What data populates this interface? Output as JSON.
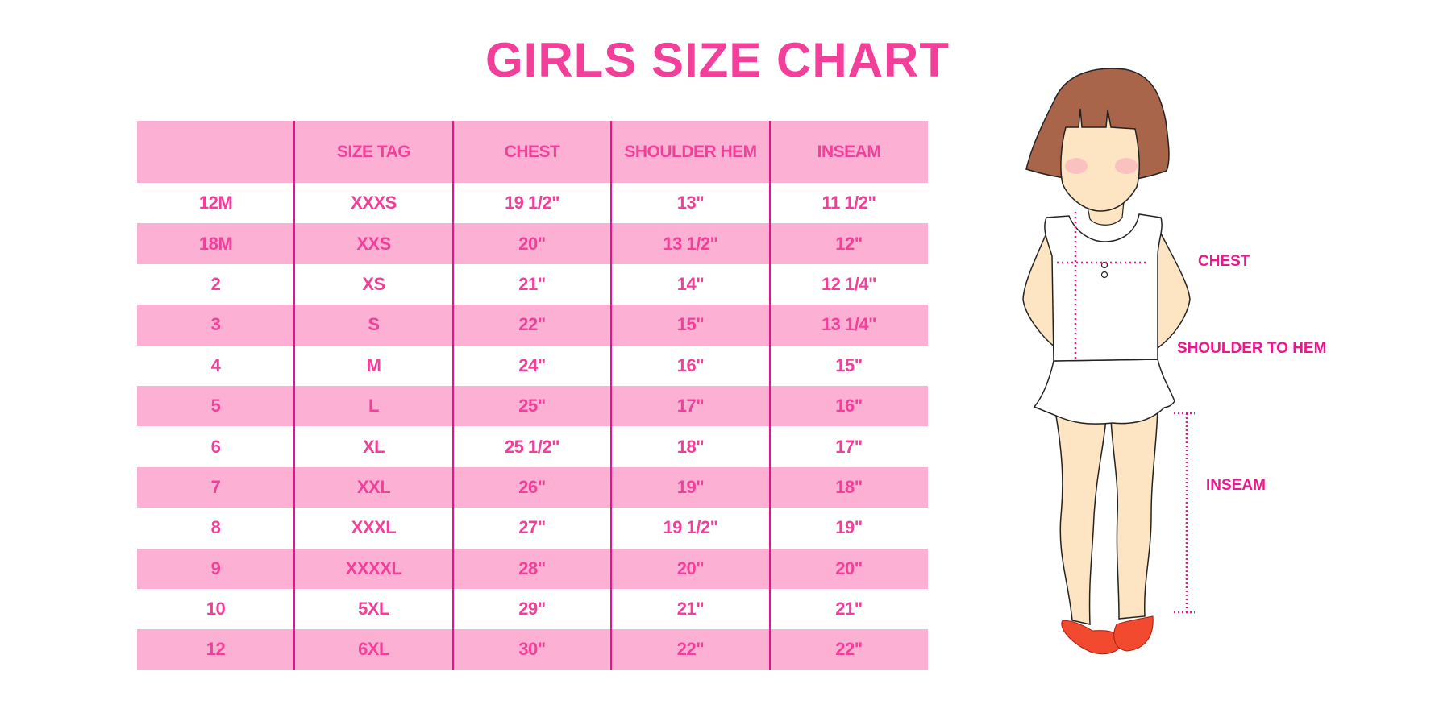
{
  "title": "GIRLS SIZE CHART",
  "table": {
    "headers": [
      "",
      "SIZE TAG",
      "CHEST",
      "SHOULDER HEM",
      "INSEAM"
    ],
    "rows": [
      [
        "12M",
        "XXXS",
        "19 1/2\"",
        "13\"",
        "11 1/2\""
      ],
      [
        "18M",
        "XXS",
        "20\"",
        "13 1/2\"",
        "12\""
      ],
      [
        "2",
        "XS",
        "21\"",
        "14\"",
        "12 1/4\""
      ],
      [
        "3",
        "S",
        "22\"",
        "15\"",
        "13 1/4\""
      ],
      [
        "4",
        "M",
        "24\"",
        "16\"",
        "15\""
      ],
      [
        "5",
        "L",
        "25\"",
        "17\"",
        "16\""
      ],
      [
        "6",
        "XL",
        "25 1/2\"",
        "18\"",
        "17\""
      ],
      [
        "7",
        "XXL",
        "26\"",
        "19\"",
        "18\""
      ],
      [
        "8",
        "XXXL",
        "27\"",
        "19 1/2\"",
        "19\""
      ],
      [
        "9",
        "XXXXL",
        "28\"",
        "20\"",
        "20\""
      ],
      [
        "10",
        "5XL",
        "29\"",
        "21\"",
        "21\""
      ],
      [
        "12",
        "6XL",
        "30\"",
        "22\"",
        "22\""
      ]
    ]
  },
  "figure": {
    "labels": {
      "chest": "CHEST",
      "shoulder": "SHOULDER TO HEM",
      "inseam": "INSEAM"
    }
  },
  "colors": {
    "accent": "#f0409a",
    "row_pink": "#fcb0d3",
    "divider": "#e6148c",
    "hair": "#a8654a",
    "skin": "#fde5c4",
    "shoe": "#f24a2e"
  }
}
